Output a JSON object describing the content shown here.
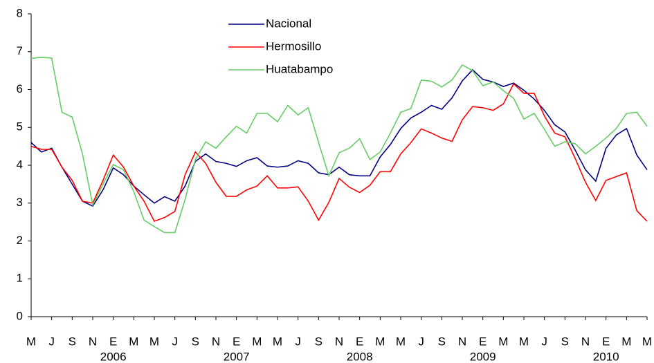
{
  "chart_data": {
    "type": "line",
    "categories": [
      "M",
      null,
      "J",
      null,
      "S",
      null,
      "N",
      null,
      "E",
      null,
      "M",
      null,
      "M",
      null,
      "J",
      null,
      "S",
      null,
      "N",
      null,
      "E",
      null,
      "M",
      null,
      "M",
      null,
      "J",
      null,
      "S",
      null,
      "N",
      null,
      "E",
      null,
      "M",
      null,
      "M",
      null,
      "J",
      null,
      "S",
      null,
      "N",
      null,
      "E",
      null,
      "M",
      null,
      "M",
      null,
      "J",
      null,
      "S",
      null,
      "N",
      null,
      "E",
      null,
      "M",
      null,
      "M"
    ],
    "year_labels": [
      "2006",
      "2007",
      "2008",
      "2009",
      "2010"
    ],
    "ylim": [
      0,
      8
    ],
    "yticks": [
      0,
      1,
      2,
      3,
      4,
      5,
      6,
      7,
      8
    ],
    "grid": false,
    "series": [
      {
        "name": "Nacional",
        "color": "#000080",
        "values": [
          4.6,
          4.35,
          4.45,
          3.95,
          3.5,
          3.05,
          2.92,
          3.35,
          3.93,
          3.75,
          3.45,
          3.22,
          3.0,
          3.17,
          3.05,
          3.45,
          4.1,
          4.3,
          4.1,
          4.05,
          3.97,
          4.12,
          4.2,
          3.98,
          3.95,
          3.98,
          4.12,
          4.05,
          3.8,
          3.75,
          3.95,
          3.75,
          3.72,
          3.72,
          4.22,
          4.55,
          4.97,
          5.25,
          5.4,
          5.58,
          5.48,
          5.78,
          6.23,
          6.52,
          6.27,
          6.2,
          6.08,
          6.17,
          5.98,
          5.75,
          5.45,
          5.07,
          4.88,
          4.4,
          3.88,
          3.58,
          4.45,
          4.8,
          4.97,
          4.27,
          3.88
        ]
      },
      {
        "name": "Hermosillo",
        "color": "#ff0000",
        "values": [
          4.5,
          4.42,
          4.42,
          3.95,
          3.6,
          3.05,
          3.0,
          3.6,
          4.27,
          3.95,
          3.45,
          3.05,
          2.52,
          2.62,
          2.78,
          3.75,
          4.35,
          4.05,
          3.55,
          3.18,
          3.18,
          3.35,
          3.45,
          3.72,
          3.4,
          3.4,
          3.43,
          3.05,
          2.55,
          3.02,
          3.65,
          3.42,
          3.28,
          3.47,
          3.83,
          3.83,
          4.3,
          4.6,
          4.96,
          4.85,
          4.72,
          4.63,
          5.2,
          5.55,
          5.52,
          5.45,
          5.62,
          6.15,
          5.9,
          5.9,
          5.3,
          4.85,
          4.75,
          4.18,
          3.55,
          3.07,
          3.6,
          3.7,
          3.8,
          2.8,
          2.52
        ]
      },
      {
        "name": "Huatabampo",
        "color": "#66cc66",
        "values": [
          6.82,
          6.85,
          6.83,
          5.4,
          5.27,
          4.3,
          2.95,
          3.5,
          4.02,
          3.88,
          3.3,
          2.55,
          2.38,
          2.22,
          2.22,
          3.1,
          4.15,
          4.62,
          4.45,
          4.75,
          5.03,
          4.85,
          5.37,
          5.37,
          5.15,
          5.58,
          5.33,
          5.52,
          4.6,
          3.72,
          4.33,
          4.45,
          4.7,
          4.15,
          4.35,
          4.85,
          5.4,
          5.5,
          6.25,
          6.22,
          6.07,
          6.25,
          6.65,
          6.5,
          6.1,
          6.2,
          5.97,
          5.77,
          5.22,
          5.37,
          4.95,
          4.5,
          4.62,
          4.57,
          4.3,
          4.5,
          4.72,
          4.97,
          5.37,
          5.4,
          5.03
        ]
      }
    ]
  }
}
